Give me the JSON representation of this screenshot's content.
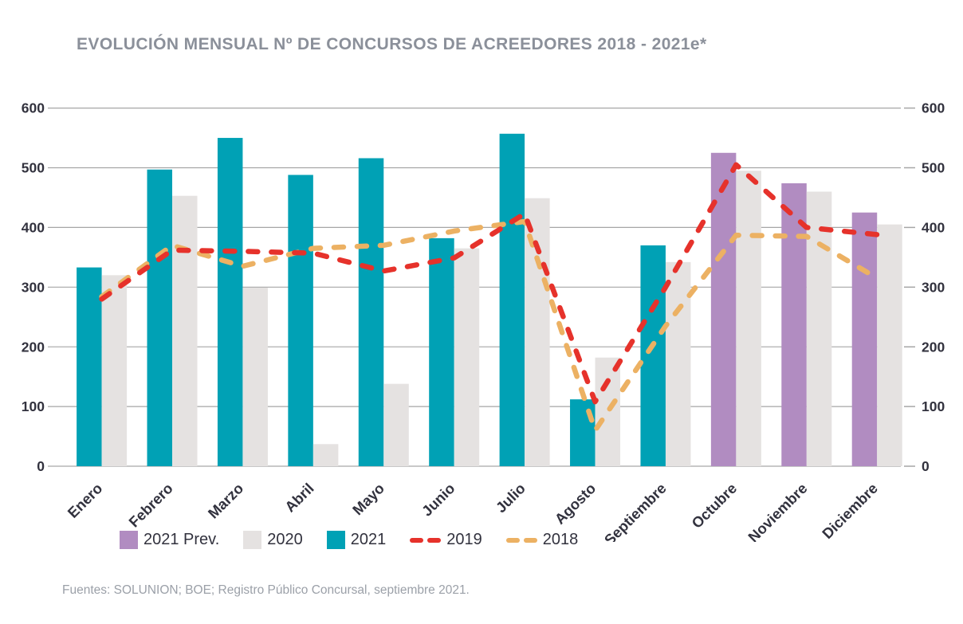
{
  "header": {
    "title": "EVOLUCIÓN MENSUAL Nº DE CONCURSOS DE ACREEDORES 2018 - 2021e*"
  },
  "footer": {
    "source": "Fuentes: SOLUNION; BOE; Registro Público Concursal, septiembre 2021."
  },
  "chart_data": {
    "type": "combo bar + line",
    "title": "EVOLUCIÓN MENSUAL Nº DE CONCURSOS DE ACREEDORES 2018 - 2021e*",
    "categories": [
      "Enero",
      "Febrero",
      "Marzo",
      "Abril",
      "Mayo",
      "Junio",
      "Julio",
      "Agosto",
      "Septiembre",
      "Octubre",
      "Noviembre",
      "Diciembre"
    ],
    "y_axis": {
      "min": 0,
      "max": 600,
      "step": 100,
      "ticks": [
        0,
        100,
        200,
        300,
        400,
        500,
        600
      ],
      "sides": "both"
    },
    "grid": true,
    "legend_position": "bottom-left",
    "series": [
      {
        "name": "2021 Prev.",
        "type": "bar",
        "color": "#b18cc1",
        "values": [
          null,
          null,
          null,
          null,
          null,
          null,
          null,
          null,
          null,
          525,
          474,
          425
        ]
      },
      {
        "name": "2020",
        "type": "bar",
        "color": "#e5e2e1",
        "values": [
          320,
          453,
          299,
          37,
          138,
          365,
          449,
          182,
          342,
          495,
          460,
          405
        ]
      },
      {
        "name": "2021",
        "type": "bar",
        "color": "#00a1b5",
        "values": [
          333,
          497,
          550,
          488,
          516,
          382,
          557,
          112,
          370,
          null,
          null,
          null
        ]
      },
      {
        "name": "2019",
        "type": "line",
        "style": "dashed",
        "color": "#e6322b",
        "values": [
          280,
          362,
          360,
          357,
          327,
          349,
          423,
          108,
          300,
          505,
          400,
          388
        ]
      },
      {
        "name": "2018",
        "type": "line",
        "style": "dashed",
        "color": "#ecb163",
        "values": [
          284,
          370,
          335,
          365,
          370,
          394,
          410,
          60,
          235,
          387,
          385,
          315
        ]
      }
    ]
  },
  "style": {
    "grid_color": "#a6a6a6",
    "axis_label_color": "#32323e",
    "title_color": "#8b909a"
  }
}
